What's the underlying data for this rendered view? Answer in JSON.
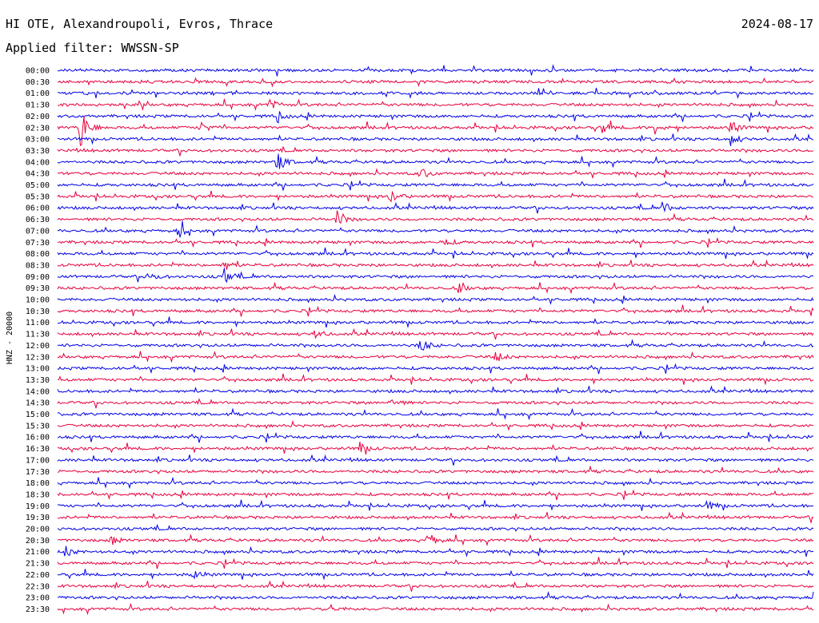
{
  "header": {
    "station": "HI OTE, Alexandroupoli, Evros, Thrace",
    "filter": "Applied filter: WWSSN-SP",
    "date": "2024-08-17"
  },
  "chart_data": {
    "type": "line",
    "title": "HI OTE, Alexandroupoli, Evros, Thrace",
    "subtitle": "Applied filter: WWSSN-SP",
    "date": "2024-08-17",
    "ylabel": "HNZ - 20000",
    "row_labels": [
      "00:00",
      "00:30",
      "01:00",
      "01:30",
      "02:00",
      "02:30",
      "03:00",
      "03:30",
      "04:00",
      "04:30",
      "05:00",
      "05:30",
      "06:00",
      "06:30",
      "07:00",
      "07:30",
      "08:00",
      "08:30",
      "09:00",
      "09:30",
      "10:00",
      "10:30",
      "11:00",
      "11:30",
      "12:00",
      "12:30",
      "13:00",
      "13:30",
      "14:00",
      "14:30",
      "15:00",
      "15:30",
      "16:00",
      "16:30",
      "17:00",
      "17:30",
      "18:00",
      "18:30",
      "19:00",
      "19:30",
      "20:00",
      "20:30",
      "21:00",
      "21:30",
      "22:00",
      "22:30",
      "23:00",
      "23:30"
    ],
    "row_minutes": 30,
    "colors": [
      "#0000e6",
      "#e6003c"
    ],
    "grid": false,
    "events": [
      {
        "row": 5,
        "t": 0.03,
        "amp": 3.0
      },
      {
        "row": 5,
        "t": 0.19,
        "amp": 0.8
      },
      {
        "row": 5,
        "t": 0.72,
        "amp": 0.7
      },
      {
        "row": 5,
        "t": 0.79,
        "amp": 0.8
      },
      {
        "row": 5,
        "t": 0.89,
        "amp": 1.0
      },
      {
        "row": 3,
        "t": 0.28,
        "amp": 0.7
      },
      {
        "row": 4,
        "t": 0.29,
        "amp": 0.7
      },
      {
        "row": 6,
        "t": 0.89,
        "amp": 0.9
      },
      {
        "row": 8,
        "t": 0.29,
        "amp": 1.4
      },
      {
        "row": 9,
        "t": 0.48,
        "amp": 0.8
      },
      {
        "row": 11,
        "t": 0.44,
        "amp": 0.9
      },
      {
        "row": 12,
        "t": 0.8,
        "amp": 0.8
      },
      {
        "row": 13,
        "t": 0.37,
        "amp": 1.2
      },
      {
        "row": 14,
        "t": 0.16,
        "amp": 1.0
      },
      {
        "row": 15,
        "t": 0.51,
        "amp": 0.6
      },
      {
        "row": 17,
        "t": 0.22,
        "amp": 0.8
      },
      {
        "row": 18,
        "t": 0.22,
        "amp": 1.2
      },
      {
        "row": 18,
        "t": 0.12,
        "amp": 0.6
      },
      {
        "row": 19,
        "t": 0.53,
        "amp": 0.6
      },
      {
        "row": 23,
        "t": 0.34,
        "amp": 0.6
      },
      {
        "row": 24,
        "t": 0.48,
        "amp": 1.0
      },
      {
        "row": 25,
        "t": 0.58,
        "amp": 0.7
      },
      {
        "row": 29,
        "t": 0.44,
        "amp": 0.6
      },
      {
        "row": 33,
        "t": 0.4,
        "amp": 0.7
      },
      {
        "row": 38,
        "t": 0.86,
        "amp": 0.6
      },
      {
        "row": 41,
        "t": 0.49,
        "amp": 1.0
      },
      {
        "row": 41,
        "t": 0.07,
        "amp": 0.6
      },
      {
        "row": 42,
        "t": 0.01,
        "amp": 0.7
      },
      {
        "row": 44,
        "t": 0.18,
        "amp": 0.6
      },
      {
        "row": 47,
        "t": 0.36,
        "amp": 0.5
      }
    ]
  }
}
